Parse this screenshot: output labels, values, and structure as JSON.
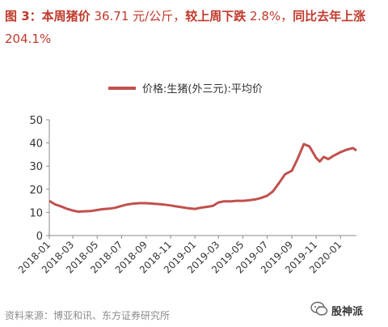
{
  "title": {
    "label": "图 3：本周猪价",
    "text1": " 36.71 元/公斤，",
    "bold1": "较上周下跌",
    "text2": " 2.8%，",
    "bold2": "同比去年上涨",
    "text3": " 204.1%"
  },
  "source": "资料来源：博亚和讯、东方证券研究所",
  "brand": {
    "name": "股神派"
  },
  "colors": {
    "accent": "#c0392b",
    "line": "#c0504d"
  },
  "chart_data": {
    "type": "line",
    "legend": "价格:生猪(外三元):平均价",
    "legend_position": "top-center",
    "grid": false,
    "ylim": [
      0,
      50
    ],
    "yticks": [
      "0",
      "10",
      "20",
      "30",
      "40",
      "50"
    ],
    "xticks": [
      "2018-01",
      "2018-03",
      "2018-05",
      "2018-07",
      "2018-09",
      "2018-11",
      "2019-01",
      "2019-03",
      "2019-05",
      "2019-07",
      "2019-09",
      "2019-11",
      "2020-01"
    ],
    "series": [
      {
        "name": "价格:生猪(外三元):平均价",
        "x": [
          "2018-01-01",
          "2018-01-15",
          "2018-02-01",
          "2018-02-15",
          "2018-03-01",
          "2018-03-15",
          "2018-04-01",
          "2018-04-15",
          "2018-05-01",
          "2018-05-15",
          "2018-06-01",
          "2018-06-15",
          "2018-07-01",
          "2018-07-15",
          "2018-08-01",
          "2018-08-15",
          "2018-09-01",
          "2018-09-15",
          "2018-10-01",
          "2018-10-15",
          "2018-11-01",
          "2018-11-15",
          "2018-12-01",
          "2018-12-15",
          "2019-01-01",
          "2019-01-15",
          "2019-02-01",
          "2019-02-15",
          "2019-03-01",
          "2019-03-15",
          "2019-04-01",
          "2019-04-15",
          "2019-05-01",
          "2019-05-15",
          "2019-06-01",
          "2019-06-15",
          "2019-07-01",
          "2019-07-15",
          "2019-08-01",
          "2019-08-15",
          "2019-09-01",
          "2019-09-15",
          "2019-10-01",
          "2019-10-15",
          "2019-11-01",
          "2019-11-10",
          "2019-11-20",
          "2019-12-01",
          "2019-12-15",
          "2020-01-01",
          "2020-01-15",
          "2020-02-01",
          "2020-02-10"
        ],
        "values": [
          15.0,
          13.5,
          12.5,
          11.5,
          10.8,
          10.3,
          10.5,
          10.6,
          11.0,
          11.4,
          11.6,
          12.0,
          12.8,
          13.4,
          13.8,
          14.0,
          14.0,
          13.8,
          13.6,
          13.4,
          13.0,
          12.6,
          12.2,
          11.8,
          11.5,
          12.0,
          12.4,
          12.8,
          14.3,
          14.8,
          14.8,
          15.0,
          15.0,
          15.2,
          15.6,
          16.2,
          17.2,
          19.0,
          23.0,
          26.5,
          28.0,
          33.0,
          39.5,
          38.5,
          33.5,
          32.0,
          34.0,
          33.0,
          34.5,
          36.0,
          37.0,
          37.8,
          36.7
        ]
      }
    ]
  }
}
